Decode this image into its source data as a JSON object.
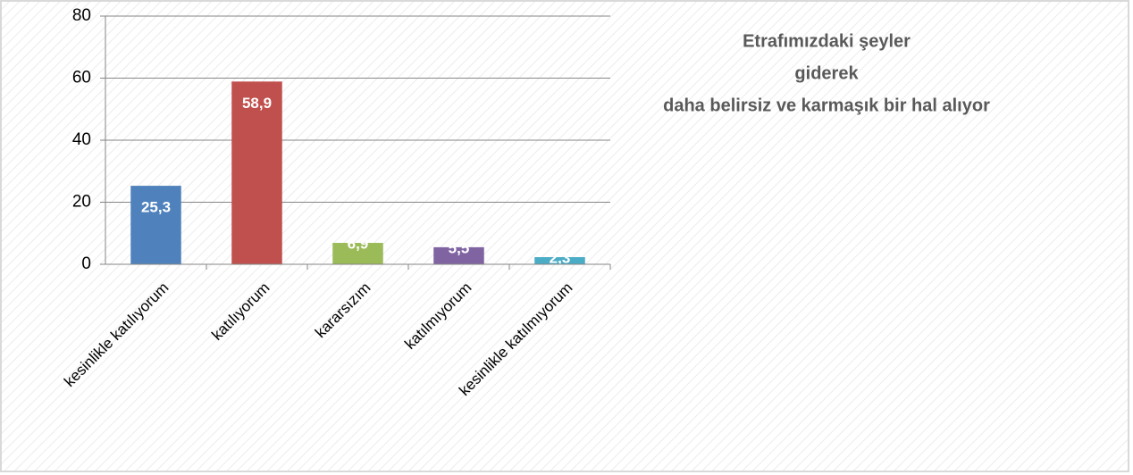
{
  "chart_data": {
    "type": "bar",
    "title": [
      "Etrafımızdaki şeyler",
      "giderek",
      "daha belirsiz ve karmaşık bir hal alıyor"
    ],
    "categories": [
      "kesinlikle katılıyorum",
      "katılıyorum",
      "kararsızım",
      "katılmıyorum",
      "kesinlikle katılmıyorum"
    ],
    "values": [
      25.3,
      58.9,
      6.9,
      5.5,
      2.3
    ],
    "value_labels": [
      "25,3",
      "58,9",
      "6,9",
      "5,5",
      "2,3"
    ],
    "colors": [
      "#4f81bd",
      "#c0504d",
      "#9bbb59",
      "#8064a2",
      "#4bacc6"
    ],
    "ylim": [
      0,
      80
    ],
    "yticks": [
      0,
      20,
      40,
      60,
      80
    ],
    "grid": true
  }
}
